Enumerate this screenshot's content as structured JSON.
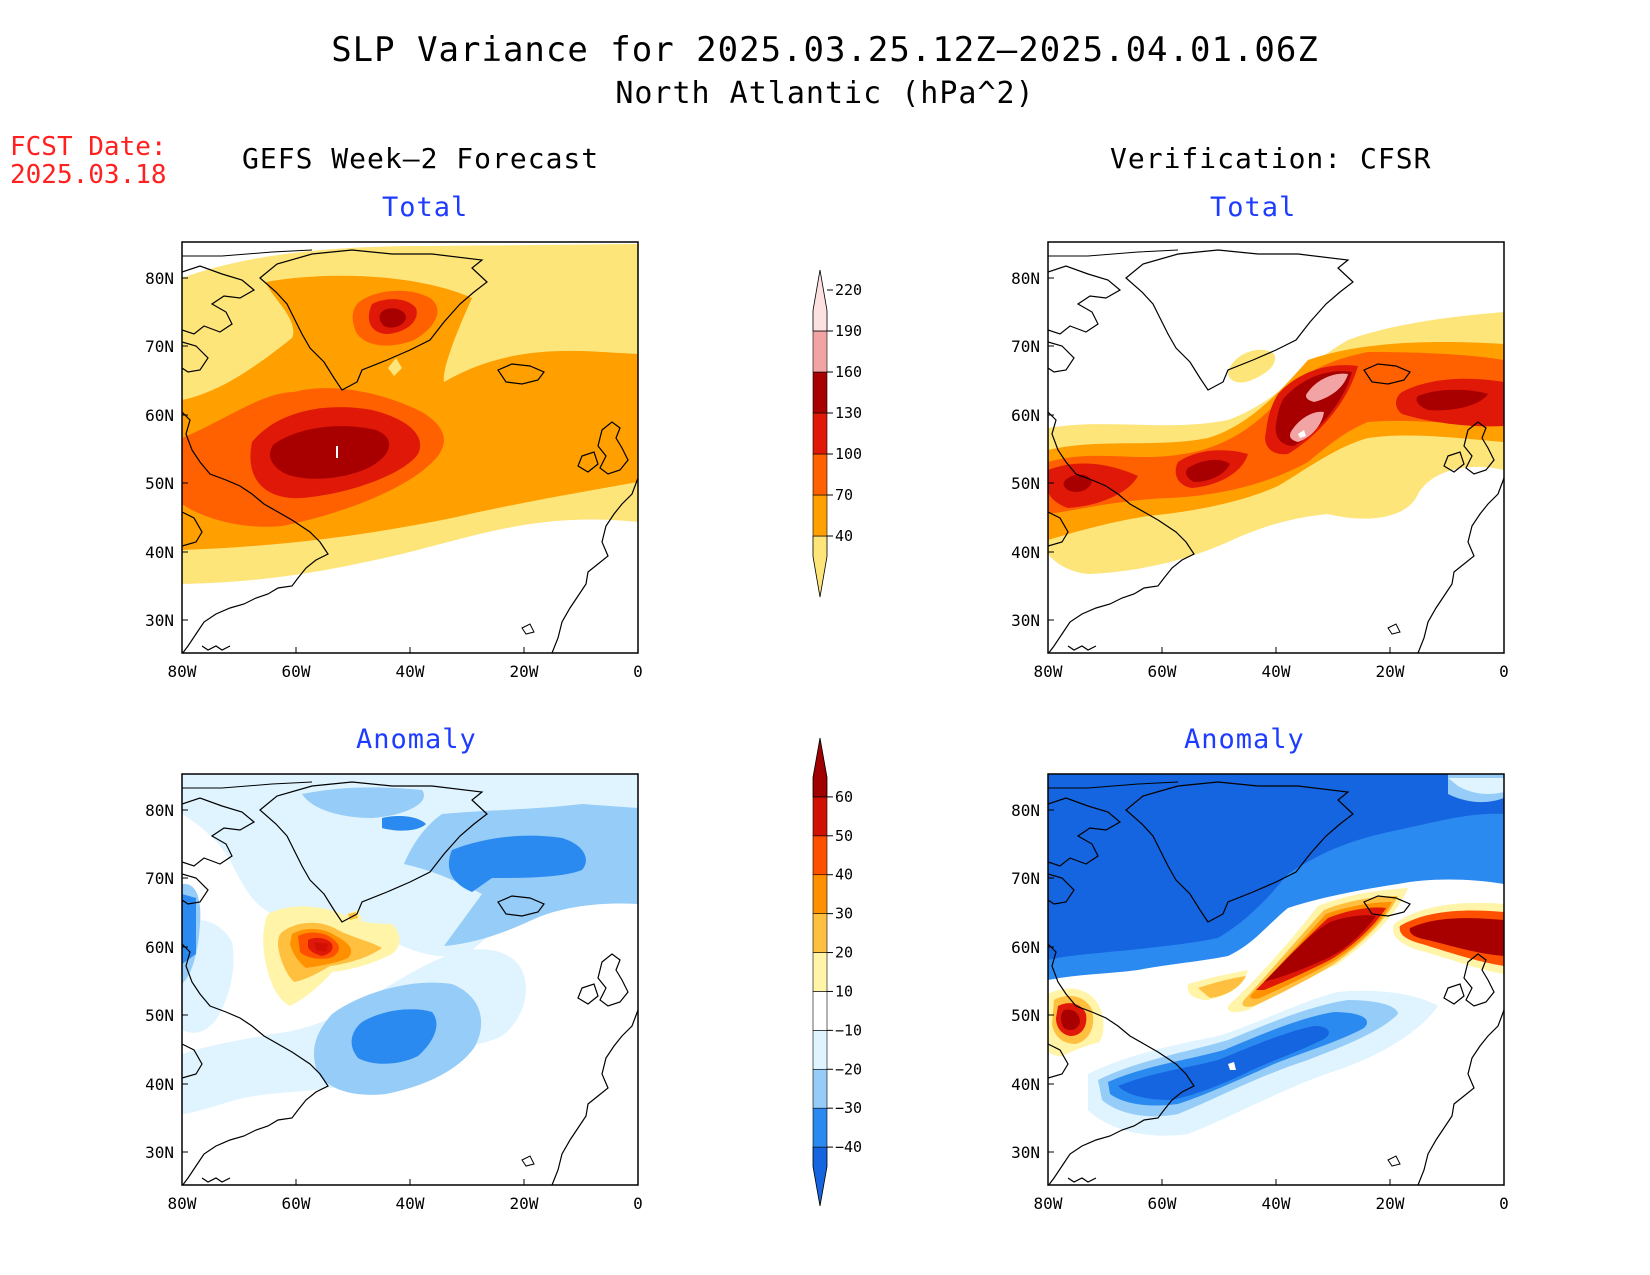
{
  "title": "SLP Variance for 2025.03.25.12Z–2025.04.01.06Z",
  "subtitle": "North Atlantic (hPa^2)",
  "fcst": {
    "label": "FCST Date:",
    "date": "2025.03.18"
  },
  "columns": {
    "left": "GEFS Week–2 Forecast",
    "right": "Verification: CFSR"
  },
  "panels": {
    "top_left": "Total",
    "top_right": "Total",
    "bottom_left": "Anomaly",
    "bottom_right": "Anomaly"
  },
  "axes": {
    "lon_labels": [
      "80W",
      "60W",
      "40W",
      "20W",
      "0"
    ],
    "lat_labels": [
      "80N",
      "70N",
      "60N",
      "50N",
      "40N",
      "30N"
    ]
  },
  "colorbars": {
    "total": {
      "levels": [
        "40",
        "70",
        "100",
        "130",
        "160",
        "190",
        "220"
      ],
      "colors": [
        "#fde57a",
        "#ff9f00",
        "#ff6000",
        "#e01808",
        "#a80000",
        "#f2a4a4",
        "#fde0e0"
      ]
    },
    "anomaly": {
      "levels": [
        "−40",
        "−30",
        "−20",
        "−10",
        "10",
        "20",
        "30",
        "40",
        "50",
        "60"
      ],
      "colors": [
        "#1565e0",
        "#2b8af0",
        "#96ccf8",
        "#dff4ff",
        "#ffffff",
        "#fff4a8",
        "#ffc040",
        "#ff9000",
        "#ff5000",
        "#d01000",
        "#a00000"
      ]
    }
  }
}
